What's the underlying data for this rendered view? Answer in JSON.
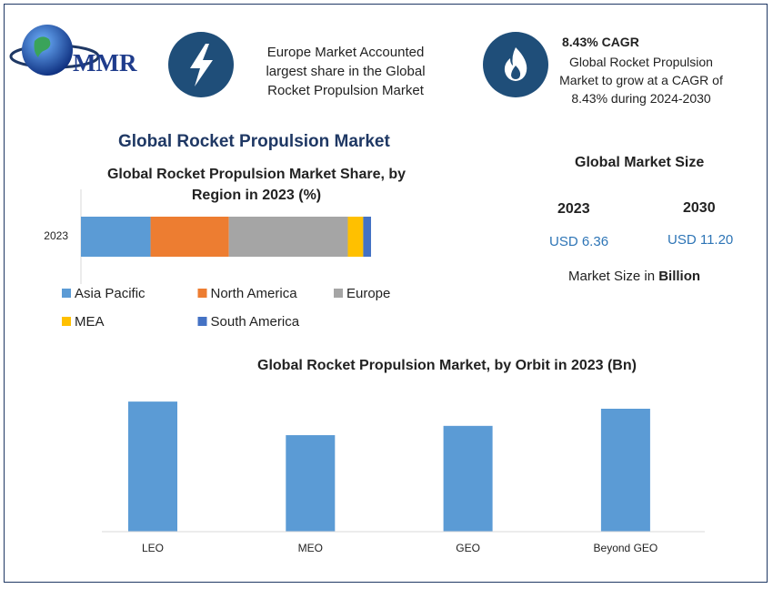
{
  "header": {
    "logo": "MMR",
    "info_lines": [
      "Europe Market Accounted",
      "largest share in the Global",
      "Rocket Propulsion Market"
    ],
    "cagr_title": "8.43% CAGR",
    "cagr_lines": [
      "Global Rocket Propulsion",
      "Market to grow at a CAGR of",
      "8.43% during 2024-2030"
    ]
  },
  "main_title": "Global Rocket Propulsion Market",
  "market_size": {
    "title": "Global Market Size",
    "years": [
      "2023",
      "2030"
    ],
    "values": [
      "USD 6.36",
      "USD 11.20"
    ],
    "unit_prefix": "Market Size in",
    "unit": "Billion"
  },
  "chart_data": [
    {
      "type": "bar",
      "orientation": "horizontal",
      "stacked": true,
      "title": "Global Rocket Propulsion Market Share, by Region in 2023 (%)",
      "categories": [
        "2023"
      ],
      "xlim": [
        0,
        100
      ],
      "series": [
        {
          "name": "Asia Pacific",
          "color": "#5b9bd5",
          "values": [
            24
          ]
        },
        {
          "name": "North America",
          "color": "#ed7d31",
          "values": [
            27
          ]
        },
        {
          "name": "Europe",
          "color": "#a5a5a5",
          "values": [
            41
          ]
        },
        {
          "name": "MEA",
          "color": "#ffc000",
          "values": [
            5.3
          ]
        },
        {
          "name": "South America",
          "color": "#4472c4",
          "values": [
            2.7
          ]
        }
      ]
    },
    {
      "type": "bar",
      "title": "Global Rocket Propulsion Market, by Orbit in 2023 (Bn)",
      "categories": [
        "LEO",
        "MEO",
        "GEO",
        "Beyond GEO"
      ],
      "values": [
        1.82,
        1.35,
        1.48,
        1.72
      ],
      "color": "#5b9bd5",
      "ylim": [
        0,
        2
      ]
    }
  ]
}
